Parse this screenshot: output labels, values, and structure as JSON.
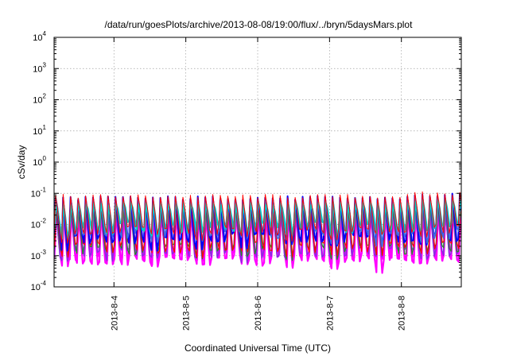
{
  "chart_data": {
    "type": "line",
    "title": "/data/run/goesPlots/archive/2013-08-08/19:00/flux/../bryn/5daysMars.plot",
    "xlabel": "Coordinated Universal Time (UTC)",
    "ylabel": "cSv/day",
    "y_scale": "log",
    "ylim": [
      0.0001,
      10000
    ],
    "y_ticks": [
      {
        "base": "10",
        "exp": "-4"
      },
      {
        "base": "10",
        "exp": "-3"
      },
      {
        "base": "10",
        "exp": "-2"
      },
      {
        "base": "10",
        "exp": "-1"
      },
      {
        "base": "10",
        "exp": "0"
      },
      {
        "base": "10",
        "exp": "1"
      },
      {
        "base": "10",
        "exp": "2"
      },
      {
        "base": "10",
        "exp": "3"
      },
      {
        "base": "10",
        "exp": "4"
      }
    ],
    "xlim": [
      "2013-08-03 04:00",
      "2013-08-08 20:00"
    ],
    "x_ticks": [
      "2013-8-4",
      "2013-8-5",
      "2013-8-6",
      "2013-8-7",
      "2013-8-8"
    ],
    "grid": true,
    "legend": "none",
    "series_colors": [
      "#ff0000",
      "#0000ff",
      "#00cccc",
      "#ff00ff",
      "#228b22",
      "#4169e1",
      "#8a2be2"
    ],
    "pattern": "sawtooth peaks every 2.5 hours; upper envelope peaks ~0.06-0.1 cSv/day, lower envelope troughs ~0.0007-0.002 cSv/day"
  }
}
